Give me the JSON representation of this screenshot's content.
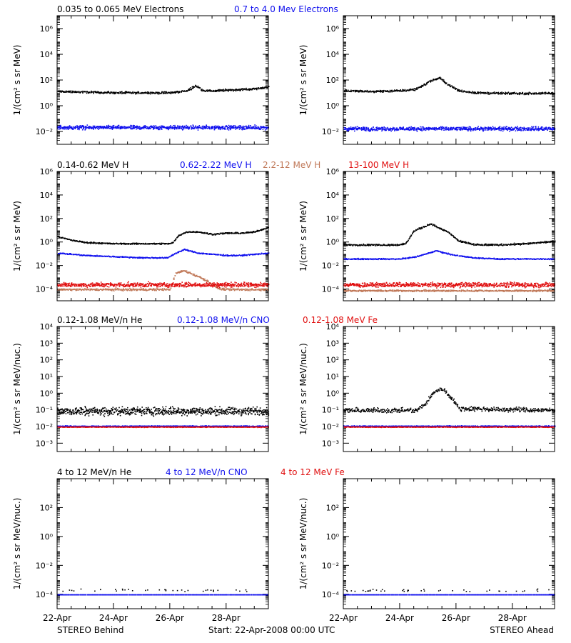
{
  "colors": {
    "black": "#000000",
    "blue": "#1010ee",
    "brown": "#c07858",
    "red": "#e01010"
  },
  "footer": {
    "left": "STEREO Behind",
    "center": "Start: 22-Apr-2008 00:00 UTC",
    "right": "STEREO Ahead"
  },
  "chart_data": [
    {
      "type": "scatter",
      "row": 0,
      "scale": "log",
      "ylabel": "1/(cm² s sr MeV)",
      "ylim_exp": [
        -3,
        7
      ],
      "yticks_exp": [
        -2,
        0,
        2,
        4,
        6
      ],
      "legend": [
        {
          "text": "0.035 to 0.065 MeV Electrons",
          "color": "black"
        },
        {
          "text": "0.7 to 4.0 Mev Electrons",
          "color": "blue"
        }
      ],
      "xlim_days": [
        0,
        7.5
      ],
      "xticks": [
        "22-Apr",
        "24-Apr",
        "26-Apr",
        "28-Apr"
      ],
      "panels": [
        {
          "spacecraft": "STEREO Behind",
          "series": [
            {
              "name": "0.035 to 0.065 MeV Electrons",
              "color": "black",
              "x": [
                0,
                1,
                2,
                3,
                4,
                4.6,
                4.9,
                5.2,
                5.6,
                6,
                6.5,
                7,
                7.5
              ],
              "log_values": [
                1.15,
                1.1,
                1.05,
                1.05,
                1.05,
                1.2,
                1.6,
                1.2,
                1.2,
                1.25,
                1.3,
                1.35,
                1.5
              ],
              "scatter": 0.12
            },
            {
              "name": "0.7 to 4.0 Mev Electrons",
              "color": "blue",
              "x": [
                0,
                7.5
              ],
              "log_values": [
                -1.65,
                -1.65
              ],
              "scatter": 0.22
            }
          ]
        },
        {
          "spacecraft": "STEREO Ahead",
          "series": [
            {
              "name": "0.035 to 0.065 MeV Electrons",
              "color": "black",
              "x": [
                0,
                1,
                2,
                2.5,
                2.8,
                3.1,
                3.4,
                3.7,
                4.1,
                4.7,
                5.5,
                6.5,
                7.5
              ],
              "log_values": [
                1.2,
                1.15,
                1.2,
                1.3,
                1.6,
                2.0,
                2.2,
                1.7,
                1.2,
                1.05,
                1.0,
                1.0,
                1.0
              ],
              "scatter": 0.12
            },
            {
              "name": "0.7 to 4.0 Mev Electrons",
              "color": "blue",
              "x": [
                0,
                7.5
              ],
              "log_values": [
                -1.75,
                -1.75
              ],
              "scatter": 0.22
            }
          ]
        }
      ]
    },
    {
      "type": "scatter",
      "row": 1,
      "scale": "log",
      "ylabel": "1/(cm² s sr MeV)",
      "ylim_exp": [
        -5,
        6
      ],
      "yticks_exp": [
        -4,
        -2,
        0,
        2,
        4,
        6
      ],
      "legend": [
        {
          "text": "0.14-0.62 MeV H",
          "color": "black"
        },
        {
          "text": "0.62-2.22 MeV H",
          "color": "blue"
        },
        {
          "text": "2.2-12 MeV H",
          "color": "brown"
        },
        {
          "text": "13-100 MeV H",
          "color": "red"
        }
      ],
      "xlim_days": [
        0,
        7.5
      ],
      "xticks": [
        "22-Apr",
        "24-Apr",
        "26-Apr",
        "28-Apr"
      ],
      "panels": [
        {
          "spacecraft": "STEREO Behind",
          "series": [
            {
              "name": "0.14-0.62 MeV H",
              "color": "black",
              "x": [
                0,
                0.5,
                1,
                2,
                3,
                4,
                4.1,
                4.3,
                4.6,
                5,
                5.5,
                6,
                6.5,
                7,
                7.5
              ],
              "log_values": [
                0.5,
                0.2,
                0.0,
                -0.1,
                -0.1,
                -0.1,
                0.0,
                0.6,
                0.9,
                0.9,
                0.7,
                0.8,
                0.8,
                0.9,
                1.3
              ],
              "scatter": 0.08
            },
            {
              "name": "0.62-2.22 MeV H",
              "color": "blue",
              "x": [
                0,
                1,
                2,
                3,
                3.9,
                4.2,
                4.5,
                5,
                5.5,
                6,
                6.5,
                7,
                7.5
              ],
              "log_values": [
                -0.9,
                -1.1,
                -1.2,
                -1.3,
                -1.3,
                -0.9,
                -0.6,
                -0.9,
                -1.0,
                -1.1,
                -1.1,
                -1.0,
                -0.9
              ],
              "scatter": 0.07
            },
            {
              "name": "2.2-12 MeV H",
              "color": "brown",
              "x": [
                0,
                4.0,
                4.2,
                4.5,
                4.8,
                5.1,
                5.4,
                5.7,
                6.0,
                7.5
              ],
              "log_values": [
                -4.0,
                -4.0,
                -2.6,
                -2.4,
                -2.7,
                -3.0,
                -3.4,
                -3.9,
                -4.0,
                -4.0
              ],
              "scatter": 0.12
            },
            {
              "name": "13-100 MeV H",
              "color": "red",
              "x": [
                0,
                7.5
              ],
              "log_values": [
                -3.6,
                -3.6
              ],
              "scatter": 0.28
            }
          ]
        },
        {
          "spacecraft": "STEREO Ahead",
          "series": [
            {
              "name": "0.14-0.62 MeV H",
              "color": "black",
              "x": [
                0,
                1,
                2,
                2.2,
                2.5,
                2.8,
                3.1,
                3.4,
                3.7,
                4.1,
                4.7,
                5.5,
                6.5,
                7.5
              ],
              "log_values": [
                -0.2,
                -0.2,
                -0.2,
                -0.1,
                1.0,
                1.3,
                1.6,
                1.2,
                0.9,
                0.1,
                -0.2,
                -0.2,
                -0.1,
                0.1
              ],
              "scatter": 0.1
            },
            {
              "name": "0.62-2.22 MeV H",
              "color": "blue",
              "x": [
                0,
                2,
                2.6,
                3.0,
                3.3,
                3.6,
                4.0,
                4.6,
                5.5,
                7.5
              ],
              "log_values": [
                -1.4,
                -1.4,
                -1.2,
                -0.9,
                -0.7,
                -0.9,
                -1.1,
                -1.3,
                -1.4,
                -1.4
              ],
              "scatter": 0.07
            },
            {
              "name": "2.2-12 MeV H",
              "color": "brown",
              "x": [
                0,
                7.5
              ],
              "log_values": [
                -4.1,
                -4.1
              ],
              "scatter": 0.1
            },
            {
              "name": "13-100 MeV H",
              "color": "red",
              "x": [
                0,
                7.5
              ],
              "log_values": [
                -3.6,
                -3.6
              ],
              "scatter": 0.28
            }
          ]
        }
      ]
    },
    {
      "type": "scatter",
      "row": 2,
      "scale": "log",
      "ylabel": "1/(cm² s sr MeV/nuc.)",
      "ylim_exp": [
        -3.5,
        4
      ],
      "yticks_exp": [
        -3,
        -2,
        -1,
        0,
        1,
        2,
        3,
        4
      ],
      "legend": [
        {
          "text": "0.12-1.08 MeV/n He",
          "color": "black"
        },
        {
          "text": "0.12-1.08 MeV/n CNO",
          "color": "blue"
        },
        {
          "text": "0.12-1.08 MeV Fe",
          "color": "red"
        }
      ],
      "xlim_days": [
        0,
        7.5
      ],
      "xticks": [
        "22-Apr",
        "24-Apr",
        "26-Apr",
        "28-Apr"
      ],
      "panels": [
        {
          "spacecraft": "STEREO Behind",
          "series": [
            {
              "name": "0.12-1.08 MeV/n He",
              "color": "black",
              "x": [
                0,
                7.5
              ],
              "log_values": [
                -1.05,
                -1.05
              ],
              "scatter": 0.35
            },
            {
              "name": "0.12-1.08 MeV/n CNO",
              "color": "blue",
              "x": [
                0,
                7.5
              ],
              "log_values": [
                -1.95,
                -1.95
              ],
              "scatter": 0.04
            },
            {
              "name": "0.12-1.08 MeV Fe",
              "color": "red",
              "x": [
                0,
                7.5
              ],
              "log_values": [
                -2.0,
                -2.0
              ],
              "scatter": 0.03
            }
          ]
        },
        {
          "spacecraft": "STEREO Ahead",
          "series": [
            {
              "name": "0.12-1.08 MeV/n He",
              "color": "black",
              "x": [
                0,
                2.6,
                2.9,
                3.2,
                3.5,
                3.8,
                4.1,
                7.5
              ],
              "log_values": [
                -1.0,
                -1.0,
                -0.6,
                0.1,
                0.3,
                -0.2,
                -0.9,
                -1.0
              ],
              "scatter": 0.2
            },
            {
              "name": "0.12-1.08 MeV/n CNO",
              "color": "blue",
              "x": [
                0,
                7.5
              ],
              "log_values": [
                -1.95,
                -1.95
              ],
              "scatter": 0.04
            },
            {
              "name": "0.12-1.08 MeV Fe",
              "color": "red",
              "x": [
                0,
                7.5
              ],
              "log_values": [
                -2.0,
                -2.0
              ],
              "scatter": 0.03
            }
          ]
        }
      ]
    },
    {
      "type": "scatter",
      "row": 3,
      "scale": "log",
      "ylabel": "1/(cm² s sr MeV/nuc.)",
      "ylim_exp": [
        -5,
        4
      ],
      "yticks_exp": [
        -4,
        -2,
        0,
        2
      ],
      "legend": [
        {
          "text": "4 to 12 MeV/n He",
          "color": "black"
        },
        {
          "text": "4 to 12 MeV/n CNO",
          "color": "blue"
        },
        {
          "text": "4 to 12 MeV Fe",
          "color": "red"
        }
      ],
      "xlim_days": [
        0,
        7.5
      ],
      "xticks": [
        "22-Apr",
        "24-Apr",
        "26-Apr",
        "28-Apr"
      ],
      "panels": [
        {
          "spacecraft": "STEREO Behind",
          "series": [
            {
              "name": "4 to 12 MeV/n CNO",
              "color": "blue",
              "x": [
                0,
                7.5
              ],
              "log_values": [
                -4.0,
                -4.0
              ],
              "scatter": 0.0
            },
            {
              "name": "4 to 12 MeV/n He",
              "color": "black",
              "x": [
                0,
                7.5
              ],
              "log_values": [
                -3.7,
                -3.7
              ],
              "scatter": 0.15
            }
          ]
        },
        {
          "spacecraft": "STEREO Ahead",
          "series": [
            {
              "name": "4 to 12 MeV/n CNO",
              "color": "blue",
              "x": [
                0,
                7.5
              ],
              "log_values": [
                -4.0,
                -4.0
              ],
              "scatter": 0.0
            },
            {
              "name": "4 to 12 MeV/n He",
              "color": "black",
              "x": [
                0,
                7.5
              ],
              "log_values": [
                -3.7,
                -3.7
              ],
              "scatter": 0.15
            }
          ]
        }
      ]
    }
  ]
}
